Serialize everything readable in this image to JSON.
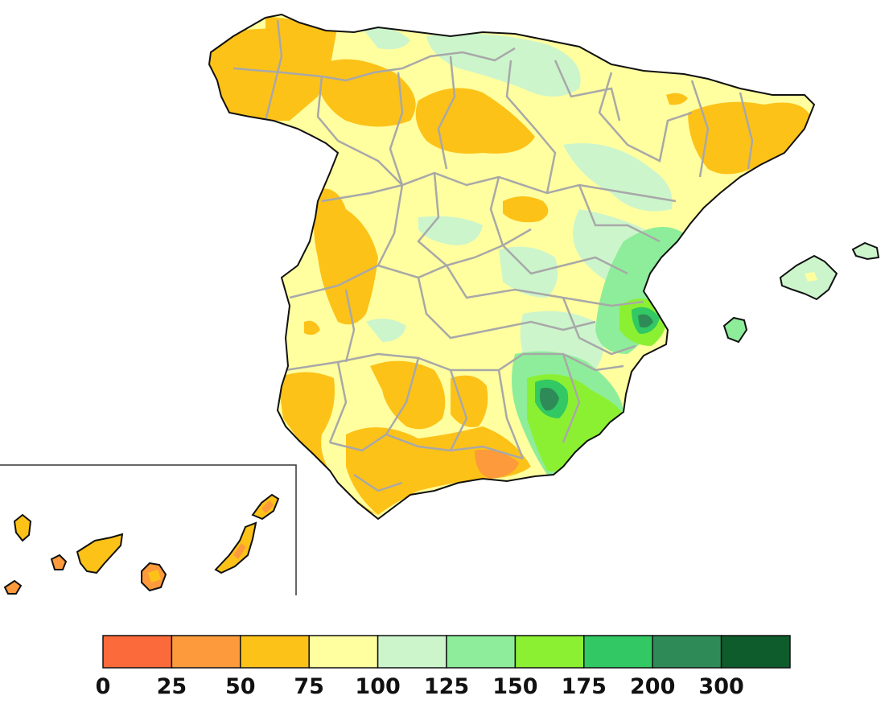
{
  "legend": {
    "colors": [
      "#fb6a3a",
      "#fd9a3c",
      "#fdc218",
      "#ffffa0",
      "#ccf5cc",
      "#8eed9a",
      "#8cf032",
      "#32c864",
      "#2e8b57",
      "#0e5c2c"
    ],
    "labels": [
      "0",
      "25",
      "50",
      "75",
      "100",
      "125",
      "150",
      "175",
      "200",
      "300"
    ]
  },
  "palette": {
    "lt25": "#fb6a3a",
    "p25_50": "#fd9a3c",
    "p50_75": "#fdc218",
    "p75_100": "#ffffa0",
    "p100_125": "#ccf5cc",
    "p125_150": "#8eed9a",
    "p150_175": "#8cf032",
    "p175_200": "#32c864",
    "p200_300": "#2e8b57",
    "gt300": "#0e5c2c",
    "province_border": "#a8a8a8",
    "coast": "#111111"
  }
}
